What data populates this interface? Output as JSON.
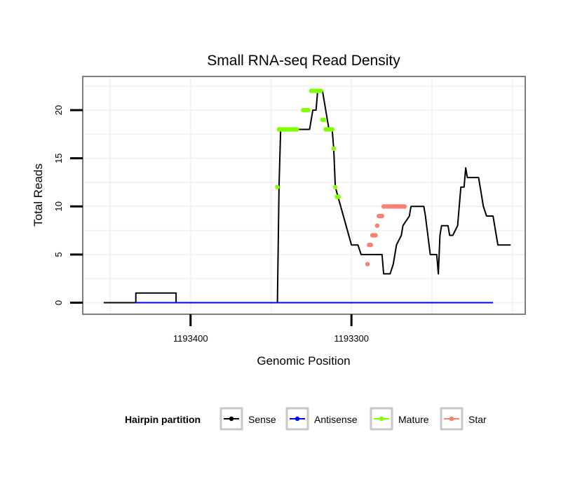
{
  "chart_data": {
    "type": "line",
    "title": "Small RNA-seq Read Density",
    "xlabel": "Genomic Position",
    "ylabel": "Total Reads",
    "x_reversed": true,
    "xlim": [
      1193467,
      1193192
    ],
    "ylim": [
      -1.2,
      23.5
    ],
    "x_ticks": [
      1193400,
      1193300
    ],
    "x_tick_labels": [
      "1193400",
      "1193300"
    ],
    "y_ticks": [
      0,
      5,
      10,
      15,
      20
    ],
    "y_tick_labels": [
      "0",
      "5",
      "10",
      "15",
      "20"
    ],
    "grid": true,
    "legend": {
      "title": "Hairpin partition",
      "position": "bottom",
      "entries": [
        {
          "name": "Sense",
          "color": "#000000"
        },
        {
          "name": "Antisense",
          "color": "#0000ff"
        },
        {
          "name": "Mature",
          "color": "#7fff00"
        },
        {
          "name": "Star",
          "color": "#fa8072"
        }
      ]
    },
    "series": [
      {
        "name": "Sense",
        "color": "#000000",
        "style": "line",
        "x": [
          1193454,
          1193434,
          1193434,
          1193409,
          1193409,
          1193346,
          1193345,
          1193344,
          1193339,
          1193337,
          1193326,
          1193324,
          1193322,
          1193321,
          1193318,
          1193316,
          1193314,
          1193312,
          1193311,
          1193310,
          1193300,
          1193299,
          1193296,
          1193294,
          1193293,
          1193292,
          1193291,
          1193290,
          1193289,
          1193288,
          1193286,
          1193284,
          1193281,
          1193280,
          1193276,
          1193274,
          1193273,
          1193272,
          1193269,
          1193268,
          1193264,
          1193263,
          1193262,
          1193260,
          1193257,
          1193256,
          1193255,
          1193254,
          1193251,
          1193249,
          1193248,
          1193247,
          1193246,
          1193245,
          1193244,
          1193240,
          1193239,
          1193237,
          1193234,
          1193232,
          1193230,
          1193229,
          1193228,
          1193226,
          1193221,
          1193220,
          1193218,
          1193216,
          1193214,
          1193213,
          1193212,
          1193211,
          1193209,
          1193201
        ],
        "y": [
          0,
          0,
          1,
          1,
          0,
          0,
          12,
          18,
          18,
          18,
          18,
          20,
          20,
          22,
          22,
          20,
          18,
          18,
          16,
          12,
          6,
          6,
          6,
          5,
          5,
          5,
          5,
          5,
          5,
          5,
          5,
          5,
          5,
          3,
          3,
          4,
          5,
          6,
          7,
          8,
          9,
          10,
          10,
          10,
          10,
          10,
          10,
          9,
          5,
          5,
          5,
          5,
          3,
          7,
          8,
          8,
          7,
          7,
          8,
          12,
          12,
          14,
          13,
          13,
          13,
          12,
          10,
          9,
          9,
          9,
          9,
          8,
          6,
          6
        ]
      },
      {
        "name": "Antisense",
        "color": "#0000ff",
        "style": "line",
        "x": [
          1193434,
          1193212
        ],
        "y": [
          0,
          0
        ]
      },
      {
        "name": "Mature",
        "color": "#7fff00",
        "style": "points",
        "x": [
          1193346,
          1193345,
          1193344,
          1193343,
          1193342,
          1193341,
          1193340,
          1193339,
          1193338,
          1193337,
          1193336,
          1193335,
          1193334,
          1193330,
          1193329,
          1193328,
          1193327,
          1193325,
          1193324,
          1193323,
          1193322,
          1193321,
          1193320,
          1193319,
          1193318,
          1193317,
          1193316,
          1193315,
          1193314,
          1193313,
          1193312,
          1193311,
          1193310,
          1193309,
          1193308
        ],
        "y": [
          12,
          18,
          18,
          18,
          18,
          18,
          18,
          18,
          18,
          18,
          18,
          18,
          18,
          20,
          20,
          20,
          20,
          22,
          22,
          22,
          22,
          22,
          22,
          22,
          19,
          19,
          18,
          18,
          18,
          18,
          18,
          16,
          12,
          11,
          11
        ]
      },
      {
        "name": "Star",
        "color": "#fa8072",
        "style": "points",
        "x": [
          1193290,
          1193289,
          1193288,
          1193287,
          1193286,
          1193285,
          1193284,
          1193283,
          1193282,
          1193281,
          1193280,
          1193279,
          1193278,
          1193277,
          1193276,
          1193275,
          1193274,
          1193273,
          1193272,
          1193271,
          1193270,
          1193269,
          1193268,
          1193267
        ],
        "y": [
          4,
          6,
          6,
          7,
          7,
          7,
          8,
          9,
          9,
          9,
          10,
          10,
          10,
          10,
          10,
          10,
          10,
          10,
          10,
          10,
          10,
          10,
          10,
          10
        ]
      }
    ]
  }
}
